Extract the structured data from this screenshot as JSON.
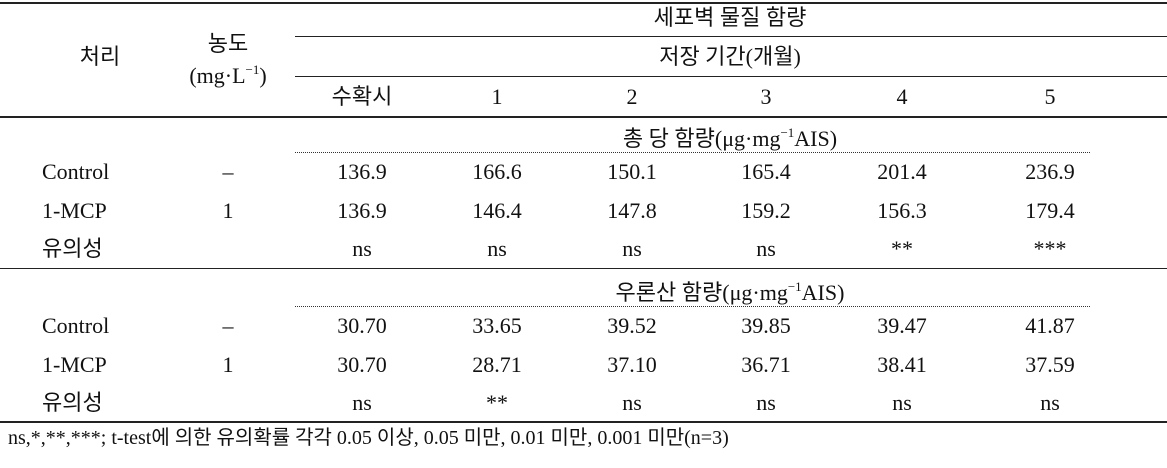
{
  "header": {
    "treatment": "처리",
    "concentration": {
      "label": "농도",
      "unit_prefix": "(mg·L",
      "unit_exp": "−1",
      "unit_suffix": ")"
    },
    "group_title": "세포벽 물질 함량",
    "period_title": "저장 기간(개월)",
    "periods": [
      "수확시",
      "1",
      "2",
      "3",
      "4",
      "5"
    ]
  },
  "sections": [
    {
      "title_prefix": "총 당 함량(μg·mg",
      "title_exp": "−1",
      "title_suffix": "AIS)",
      "rows": [
        {
          "treatment": "Control",
          "concentration": "–",
          "values": [
            "136.9",
            "166.6",
            "150.1",
            "165.4",
            "201.4",
            "236.9"
          ]
        },
        {
          "treatment": "1-MCP",
          "concentration": "1",
          "values": [
            "136.9",
            "146.4",
            "147.8",
            "159.2",
            "156.3",
            "179.4"
          ]
        },
        {
          "treatment": "유의성",
          "concentration": null,
          "values": [
            "ns",
            "ns",
            "ns",
            "ns",
            "**",
            "***"
          ]
        }
      ]
    },
    {
      "title_prefix": "우론산 함량(μg·mg",
      "title_exp": "−1",
      "title_suffix": "AIS)",
      "rows": [
        {
          "treatment": "Control",
          "concentration": "–",
          "values": [
            "30.70",
            "33.65",
            "39.52",
            "39.85",
            "39.47",
            "41.87"
          ]
        },
        {
          "treatment": "1-MCP",
          "concentration": "1",
          "values": [
            "30.70",
            "28.71",
            "37.10",
            "36.71",
            "38.41",
            "37.59"
          ]
        },
        {
          "treatment": "유의성",
          "concentration": null,
          "values": [
            "ns",
            "**",
            "ns",
            "ns",
            "ns",
            "ns"
          ]
        }
      ]
    }
  ],
  "footnote": "ns,*,**,***; t-test에 의한 유의확률 각각 0.05 이상, 0.05 미만, 0.01 미만, 0.001 미만(n=3)"
}
